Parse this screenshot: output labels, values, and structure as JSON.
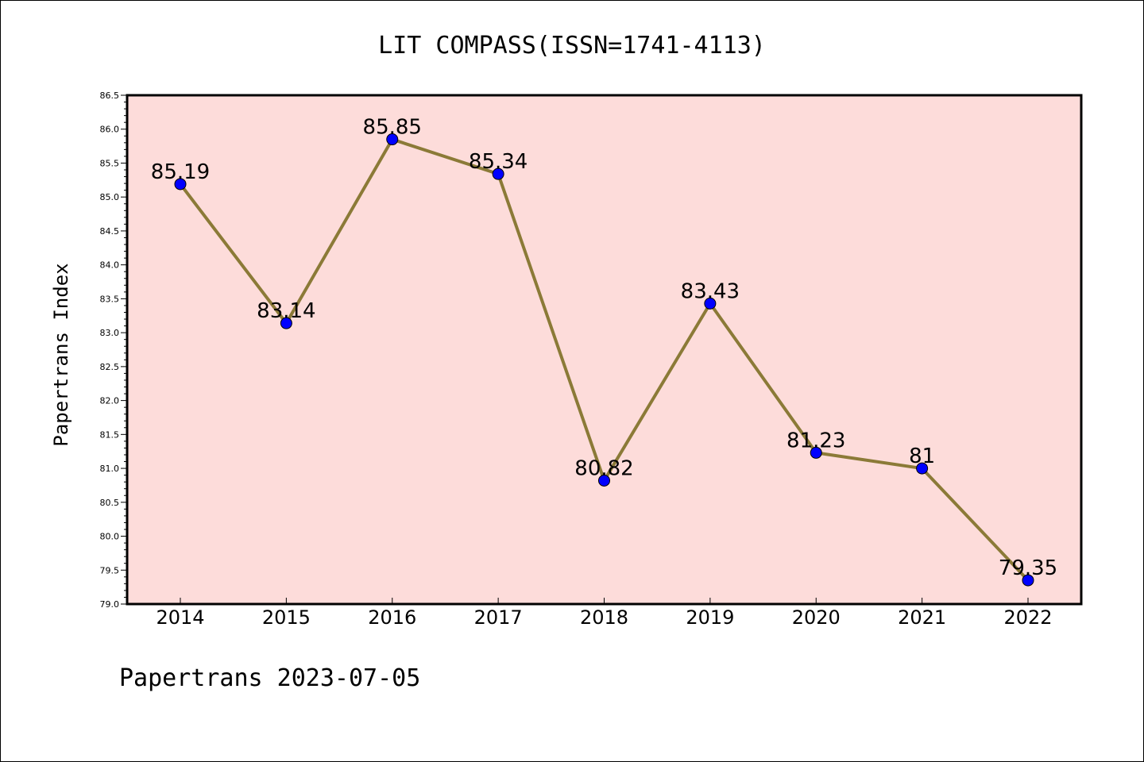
{
  "chart_data": {
    "type": "line",
    "title": "LIT COMPASS(ISSN=1741-4113)",
    "ylabel": "Papertrans Index",
    "xlabel": "",
    "categories": [
      "2014",
      "2015",
      "2016",
      "2017",
      "2018",
      "2019",
      "2020",
      "2021",
      "2022"
    ],
    "series": [
      {
        "values": [
          85.19,
          83.14,
          85.85,
          85.34,
          80.82,
          83.43,
          81.23,
          81,
          79.35
        ],
        "labels": [
          "85.19",
          "83.14",
          "85.85",
          "85.34",
          "80.82",
          "83.43",
          "81.23",
          "81",
          "79.35"
        ]
      }
    ],
    "ylim": [
      79.0,
      86.5
    ],
    "yticks": [
      "79.0",
      "79.5",
      "80.0",
      "80.5",
      "81.0",
      "81.5",
      "82.0",
      "82.5",
      "83.0",
      "83.5",
      "84.0",
      "84.5",
      "85.0",
      "85.5",
      "86.0",
      "86.5"
    ],
    "grid": false,
    "colors": {
      "plot_background": "#fddcda",
      "line": "#8b7a37",
      "marker": "#0000ff",
      "axes": "#000000"
    }
  },
  "footer": {
    "text": "Papertrans 2023-07-05"
  }
}
